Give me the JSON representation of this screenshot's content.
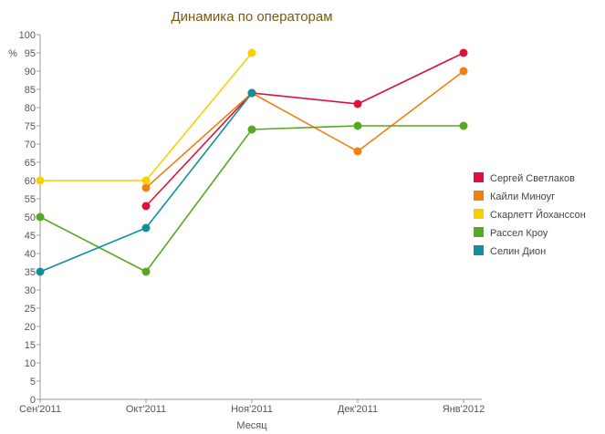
{
  "chart_data": {
    "type": "line",
    "title": "Динамика по операторам",
    "xlabel": "Месяц",
    "ylabel": "%",
    "categories": [
      "Сен'2011",
      "Окт'2011",
      "Ноя'2011",
      "Дек'2011",
      "Янв'2012"
    ],
    "ylim": [
      0,
      100
    ],
    "yticks": [
      0,
      5,
      10,
      15,
      20,
      25,
      30,
      35,
      40,
      45,
      50,
      55,
      60,
      65,
      70,
      75,
      80,
      85,
      90,
      95,
      100
    ],
    "grid": false,
    "legend_position": "right",
    "series": [
      {
        "name": "Сергей Светлаков",
        "color": "#e0103c",
        "values": [
          null,
          53,
          84,
          81,
          95
        ]
      },
      {
        "name": "Кайли Миноуг",
        "color": "#f08010",
        "values": [
          null,
          58,
          84,
          68,
          90
        ]
      },
      {
        "name": "Скарлетт Йохансcон",
        "color": "#f8d000",
        "values": [
          60,
          60,
          95,
          null,
          null
        ]
      },
      {
        "name": "Рассел Кроу",
        "color": "#58a820",
        "values": [
          50,
          35,
          74,
          75,
          75
        ]
      },
      {
        "name": "Селин Дион",
        "color": "#10909c",
        "values": [
          35,
          47,
          84,
          null,
          null
        ]
      }
    ]
  }
}
